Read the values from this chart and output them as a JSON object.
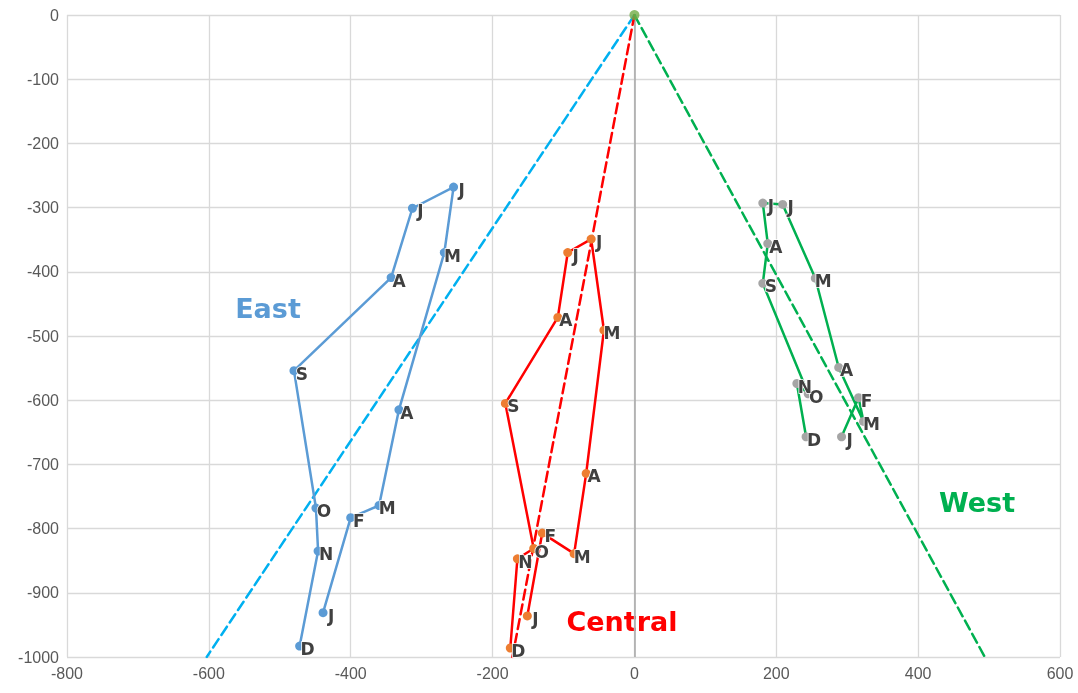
{
  "chart_data": {
    "type": "line",
    "xlim": [
      -800,
      600
    ],
    "xticks": [
      -800,
      -600,
      -400,
      -200,
      0,
      200,
      400,
      600
    ],
    "ylim": [
      -1000,
      0
    ],
    "yticks": [
      -1000,
      -900,
      -800,
      -700,
      -600,
      -500,
      -400,
      -300,
      -200,
      -100,
      0
    ],
    "grid": true,
    "marker": "circle",
    "line_style": "solid",
    "ref_lines": [
      {
        "axis": "x",
        "value": 0,
        "color": "#a6a6a6"
      }
    ],
    "series": [
      {
        "name": "East",
        "color": "#5b9bd5",
        "x": [
          -439,
          -400,
          -360,
          -332,
          -268,
          -255,
          -313,
          -343,
          -480,
          -449,
          -446,
          -472
        ],
        "values": [
          -931,
          -783,
          -764,
          -615,
          -370,
          -268,
          -301,
          -409,
          -554,
          -768,
          -835,
          -983
        ],
        "value_labels": [
          "J",
          "F",
          "M",
          "A",
          "M",
          "J",
          "J",
          "A",
          "S",
          "O",
          "N",
          "D"
        ]
      },
      {
        "name": "Central",
        "color": "#ff0000",
        "colors": [
          "#ed7d31",
          "#ed7d31",
          "#ed7d31",
          "#ed7d31",
          "#ed7d31",
          "#ed7d31",
          "#ed7d31",
          "#ed7d31",
          "#ed7d31",
          "#ed7d31",
          "#ed7d31",
          "#ed7d31"
        ],
        "x": [
          -151,
          -130,
          -85,
          -68,
          -43,
          -61,
          -94,
          -108,
          -182,
          -142,
          -165,
          -175
        ],
        "values": [
          -936,
          -807,
          -839,
          -714,
          -491,
          -349,
          -370,
          -471,
          -605,
          -831,
          -847,
          -986
        ],
        "value_labels": [
          "J",
          "F",
          "M",
          "A",
          "M",
          "J",
          "J",
          "A",
          "S",
          "O",
          "N",
          "D"
        ]
      },
      {
        "name": "West",
        "color": "#00b050",
        "colors": [
          "#a5a5a5",
          "#a5a5a5",
          "#a5a5a5",
          "#a5a5a5",
          "#a5a5a5",
          "#a5a5a5",
          "#a5a5a5",
          "#a5a5a5",
          "#a5a5a5",
          "#a5a5a5",
          "#a5a5a5",
          "#a5a5a5"
        ],
        "x": [
          292,
          316,
          323,
          288,
          255,
          209,
          181,
          188,
          181,
          245,
          229,
          242
        ],
        "values": [
          -657,
          -596,
          -633,
          -549,
          -410,
          -295,
          -293,
          -356,
          -418,
          -590,
          -574,
          -657
        ],
        "value_labels": [
          "J",
          "F",
          "M",
          "A",
          "M",
          "J",
          "J",
          "A",
          "S",
          "O",
          "N",
          "D"
        ]
      },
      {
        "color": "#00b0f0",
        "line_style": "dashed",
        "marker": "none",
        "x": [
          0,
          -603
        ],
        "values": [
          0,
          -1000
        ]
      },
      {
        "color": "#ff0000",
        "line_style": "dashed",
        "marker": "none",
        "x": [
          0,
          -172
        ],
        "values": [
          0,
          -1000
        ]
      },
      {
        "color": "#00b050",
        "line_style": "dashed",
        "marker": "none",
        "x": [
          0,
          494
        ],
        "values": [
          0,
          -1000
        ]
      },
      {
        "type": "scatter",
        "color": "#70ad47",
        "x": [
          0
        ],
        "values": [
          0
        ]
      }
    ]
  }
}
